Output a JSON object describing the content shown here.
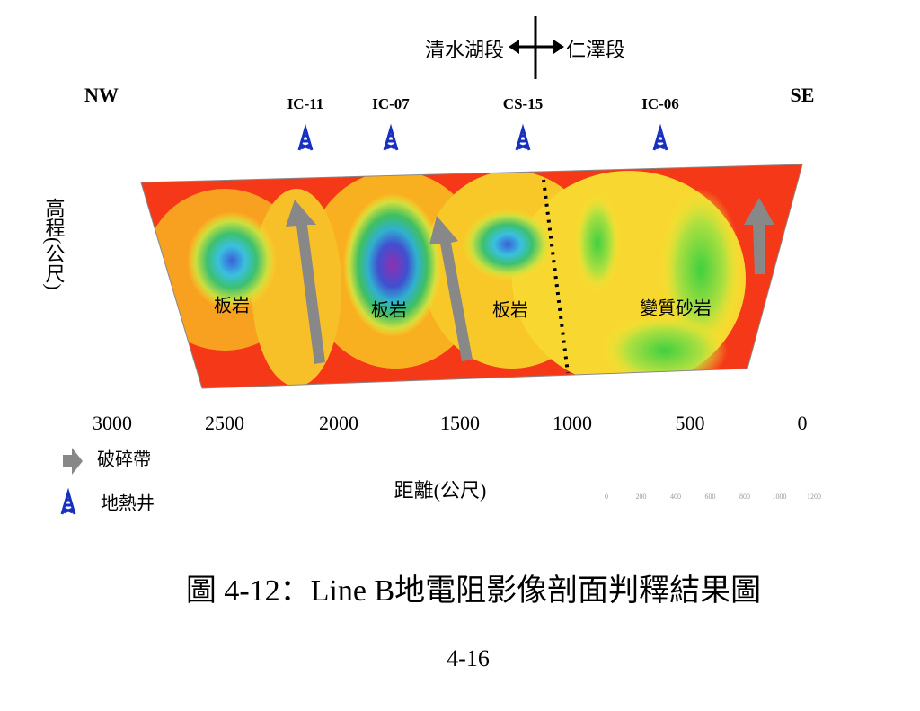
{
  "header": {
    "left_section": "清水湖段",
    "right_section": "仁澤段",
    "left_dir": "NW",
    "right_dir": "SE"
  },
  "wells": [
    "IC-11",
    "IC-07",
    "CS-15",
    "IC-06"
  ],
  "rocks": [
    "板岩",
    "板岩",
    "板岩",
    "變質砂岩"
  ],
  "y_label": "高程(公尺)",
  "x_ticks": [
    3000,
    2500,
    2000,
    1500,
    1000,
    500,
    0
  ],
  "x_label": "距離(公尺)",
  "scale_ticks": [
    0,
    200,
    400,
    600,
    800,
    1000,
    1200
  ],
  "legend": [
    "破碎帶",
    "地熱井"
  ],
  "caption": "圖 4-12：Line B地電阻影像剖面判釋結果圖",
  "page_number": "4-16"
}
